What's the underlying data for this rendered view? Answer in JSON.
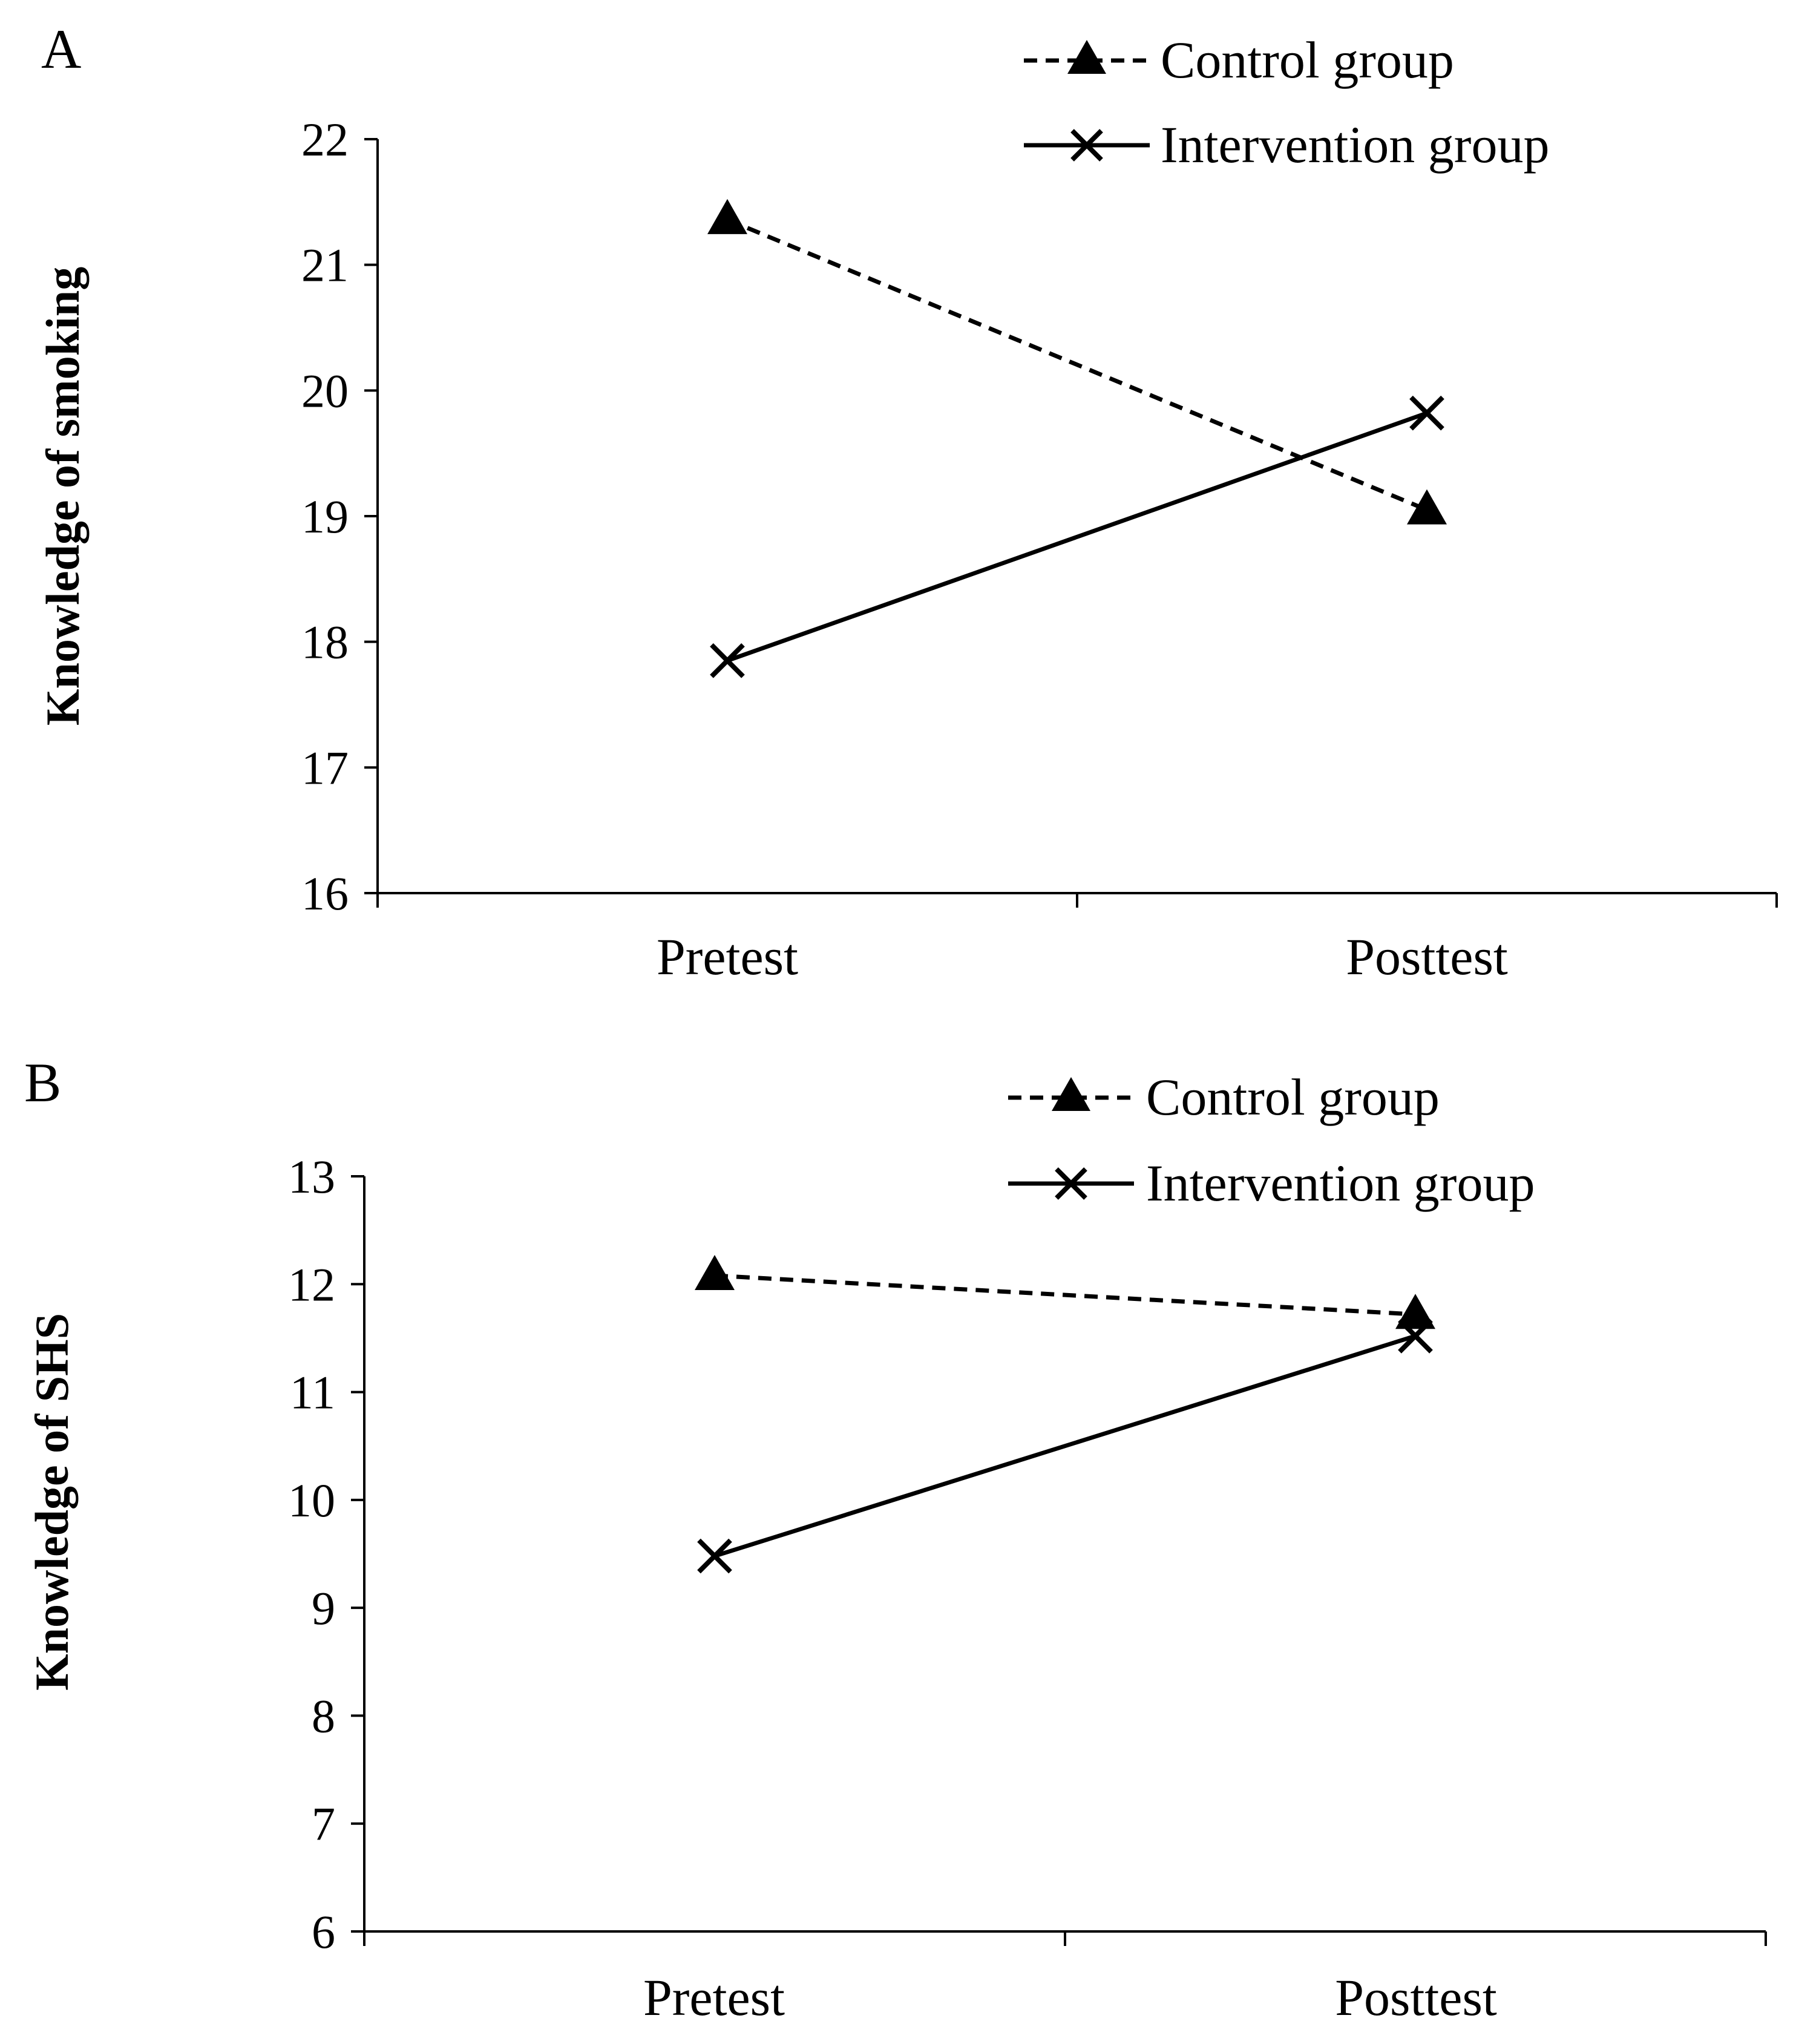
{
  "chart_data": [
    {
      "panel_label": "A",
      "type": "line",
      "title": "",
      "xlabel": "",
      "ylabel": "Knowledge of smoking",
      "categories": [
        "Pretest",
        "Posttest"
      ],
      "ylim": [
        16,
        22
      ],
      "yticks": [
        "16",
        "17",
        "18",
        "19",
        "20",
        "21",
        "22"
      ],
      "grid": false,
      "legend_position": "top-right",
      "series": [
        {
          "name": "Control group",
          "style": "dashed",
          "marker": "triangle",
          "values": [
            21.36,
            19.05
          ]
        },
        {
          "name": "Intervention group",
          "style": "solid",
          "marker": "x",
          "values": [
            17.85,
            19.82
          ]
        }
      ]
    },
    {
      "panel_label": "B",
      "type": "line",
      "title": "",
      "xlabel": "",
      "ylabel": "Knowledge of SHS",
      "categories": [
        "Pretest",
        "Posttest"
      ],
      "ylim": [
        6,
        13
      ],
      "yticks": [
        "6",
        "7",
        "8",
        "9",
        "10",
        "11",
        "12",
        "13"
      ],
      "grid": false,
      "legend_position": "top-right",
      "series": [
        {
          "name": "Control group",
          "style": "dashed",
          "marker": "triangle",
          "values": [
            12.08,
            11.72
          ]
        },
        {
          "name": "Intervention group",
          "style": "solid",
          "marker": "x",
          "values": [
            9.48,
            11.52
          ]
        }
      ]
    }
  ]
}
